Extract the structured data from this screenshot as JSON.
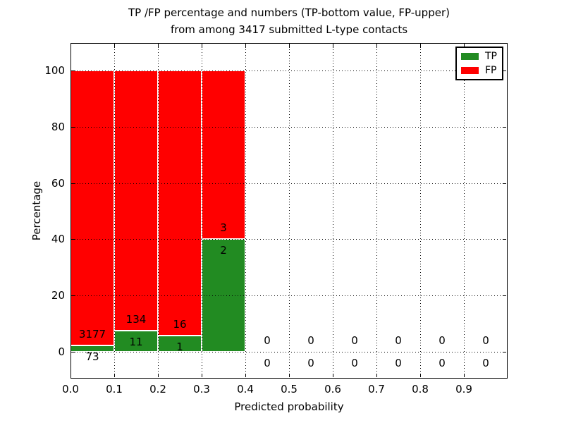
{
  "title": {
    "line1": "TP /FP percentage and numbers (TP-bottom value, FP-upper)",
    "line2": "from among 3417 submitted L-type contacts"
  },
  "chart_data": {
    "type": "bar",
    "subtype": "stacked-percentage-histogram",
    "title": "TP /FP percentage and numbers (TP-bottom value, FP-upper)\nfrom among 3417 submitted L-type contacts",
    "xlabel": "Predicted probability",
    "ylabel": "Percentage",
    "xlim": [
      0.0,
      1.0
    ],
    "ylim": [
      -10,
      110
    ],
    "bar_width": 0.1,
    "grid": {
      "style": "dotted",
      "color": "#000000"
    },
    "x_tick_labels": [
      "0.0",
      "0.1",
      "0.2",
      "0.3",
      "0.4",
      "0.5",
      "0.6",
      "0.7",
      "0.8",
      "0.9"
    ],
    "y_tick_values": [
      0,
      20,
      40,
      60,
      80,
      100
    ],
    "y_tick_labels": [
      "0",
      "20",
      "40",
      "60",
      "80",
      "100"
    ],
    "legend": {
      "position": "upper-right",
      "entries": [
        {
          "label": "TP",
          "color": "#228b22"
        },
        {
          "label": "FP",
          "color": "#ff0000"
        }
      ]
    },
    "total_contacts": 3417,
    "stacking_note": "each non-empty bin normalized to 100%; green TP segment on bottom, red FP segment on top; numeric labels show raw counts (TP below boundary, FP above boundary)",
    "bins": [
      {
        "x0": 0.0,
        "x1": 0.1,
        "tp": 73,
        "fp": 3177
      },
      {
        "x0": 0.1,
        "x1": 0.2,
        "tp": 11,
        "fp": 134
      },
      {
        "x0": 0.2,
        "x1": 0.3,
        "tp": 1,
        "fp": 16
      },
      {
        "x0": 0.3,
        "x1": 0.4,
        "tp": 2,
        "fp": 3
      },
      {
        "x0": 0.4,
        "x1": 0.5,
        "tp": 0,
        "fp": 0
      },
      {
        "x0": 0.5,
        "x1": 0.6,
        "tp": 0,
        "fp": 0
      },
      {
        "x0": 0.6,
        "x1": 0.7,
        "tp": 0,
        "fp": 0
      },
      {
        "x0": 0.7,
        "x1": 0.8,
        "tp": 0,
        "fp": 0
      },
      {
        "x0": 0.8,
        "x1": 0.9,
        "tp": 0,
        "fp": 0
      },
      {
        "x0": 0.9,
        "x1": 1.0,
        "tp": 0,
        "fp": 0
      }
    ],
    "colors": {
      "tp": "#228b22",
      "fp": "#ff0000",
      "background": "#ffffff",
      "text": "#000000",
      "bar_edge": "#ffffff"
    }
  }
}
